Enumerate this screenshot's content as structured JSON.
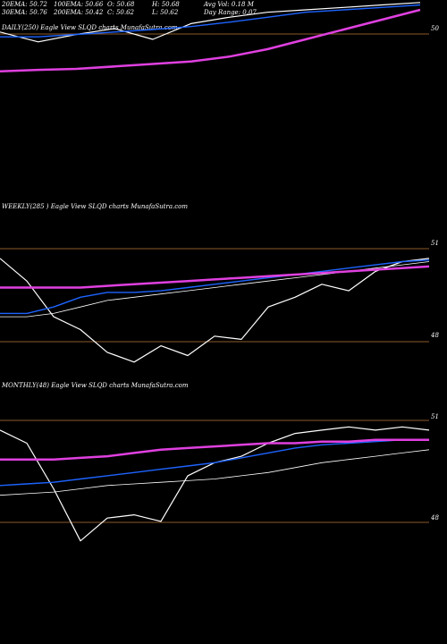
{
  "header": {
    "row1": [
      "20EMA: 50.72",
      "100EMA: 50.66",
      "O: 50.68",
      "H: 50.68",
      "Avg Vol: 0.18  M"
    ],
    "row2": [
      "30EMA: 50.76",
      "200EMA: 50.42",
      "C: 50.62",
      "L: 50.62",
      "Day Range: 0.07"
    ]
  },
  "colors": {
    "background": "#000000",
    "price": "#ffffff",
    "ema_fast": "#1e64ff",
    "ema_mid": "#ffffff",
    "ema_slow": "#e040e0",
    "band": "#8b5a2b"
  },
  "chart_data": [
    {
      "type": "line",
      "title": "DAILY(250) Eagle  View  SLQD charts MunafaSutra.com",
      "yticks": [
        50
      ],
      "ylim": [
        49.6,
        51.2
      ],
      "series": [
        {
          "values": [
            50.55,
            50.35,
            50.5,
            50.62,
            50.4,
            50.72,
            50.85,
            50.95,
            51.0,
            51.05,
            51.1,
            51.15
          ]
        },
        {
          "values": [
            50.45,
            50.45,
            50.5,
            50.55,
            50.6,
            50.66,
            50.75,
            50.85,
            50.95,
            51.0,
            51.05,
            51.1
          ]
        },
        {
          "values": [
            49.75,
            49.78,
            49.8,
            49.85,
            49.9,
            49.95,
            50.05,
            50.2,
            50.4,
            50.6,
            50.8,
            51.0
          ]
        }
      ]
    },
    {
      "type": "line",
      "title": "WEEKLY(285               ) Eagle   View  SLQD charts MunafaSutra.com",
      "yticks": [
        51,
        48
      ],
      "ylim": [
        47.6,
        51.3
      ],
      "series": [
        {
          "values": [
            51.0,
            50.3,
            49.2,
            48.8,
            48.1,
            47.8,
            48.3,
            48.0,
            48.6,
            48.5,
            49.5,
            49.8,
            50.2,
            50.0,
            50.6,
            50.9,
            51.0
          ]
        },
        {
          "values": [
            49.3,
            49.3,
            49.5,
            49.8,
            49.95,
            49.95,
            50.0,
            50.1,
            50.2,
            50.3,
            50.4,
            50.5,
            50.6,
            50.7,
            50.8,
            50.9,
            50.95
          ]
        },
        {
          "values": [
            49.2,
            49.2,
            49.3,
            49.5,
            49.7,
            49.8,
            49.9,
            50.0,
            50.1,
            50.2,
            50.3,
            50.4,
            50.5,
            50.6,
            50.7,
            50.8,
            50.9
          ]
        },
        {
          "values": [
            50.1,
            50.1,
            50.1,
            50.1,
            50.15,
            50.2,
            50.25,
            50.3,
            50.35,
            50.4,
            50.45,
            50.5,
            50.55,
            50.6,
            50.65,
            50.7,
            50.75
          ]
        }
      ]
    },
    {
      "type": "line",
      "title": "MONTHLY(48) Eagle  View  SLQD charts MunafaSutra.com",
      "yticks": [
        51,
        48
      ],
      "ylim": [
        47.4,
        51.3
      ],
      "series": [
        {
          "values": [
            51.0,
            50.6,
            49.2,
            47.6,
            48.3,
            48.4,
            48.2,
            49.6,
            50.0,
            50.2,
            50.6,
            50.9,
            51.0,
            51.1,
            51.0,
            51.1,
            51.0
          ]
        },
        {
          "values": [
            49.3,
            49.35,
            49.4,
            49.5,
            49.6,
            49.7,
            49.8,
            49.9,
            50.0,
            50.15,
            50.3,
            50.45,
            50.55,
            50.6,
            50.65,
            50.7,
            50.7
          ]
        },
        {
          "values": [
            49.0,
            49.05,
            49.1,
            49.2,
            49.3,
            49.35,
            49.4,
            49.45,
            49.5,
            49.6,
            49.7,
            49.85,
            50.0,
            50.1,
            50.2,
            50.3,
            50.4
          ]
        },
        {
          "values": [
            50.1,
            50.1,
            50.1,
            50.15,
            50.2,
            50.3,
            50.4,
            50.45,
            50.5,
            50.55,
            50.6,
            50.6,
            50.65,
            50.65,
            50.7,
            50.7,
            50.7
          ]
        }
      ]
    }
  ]
}
